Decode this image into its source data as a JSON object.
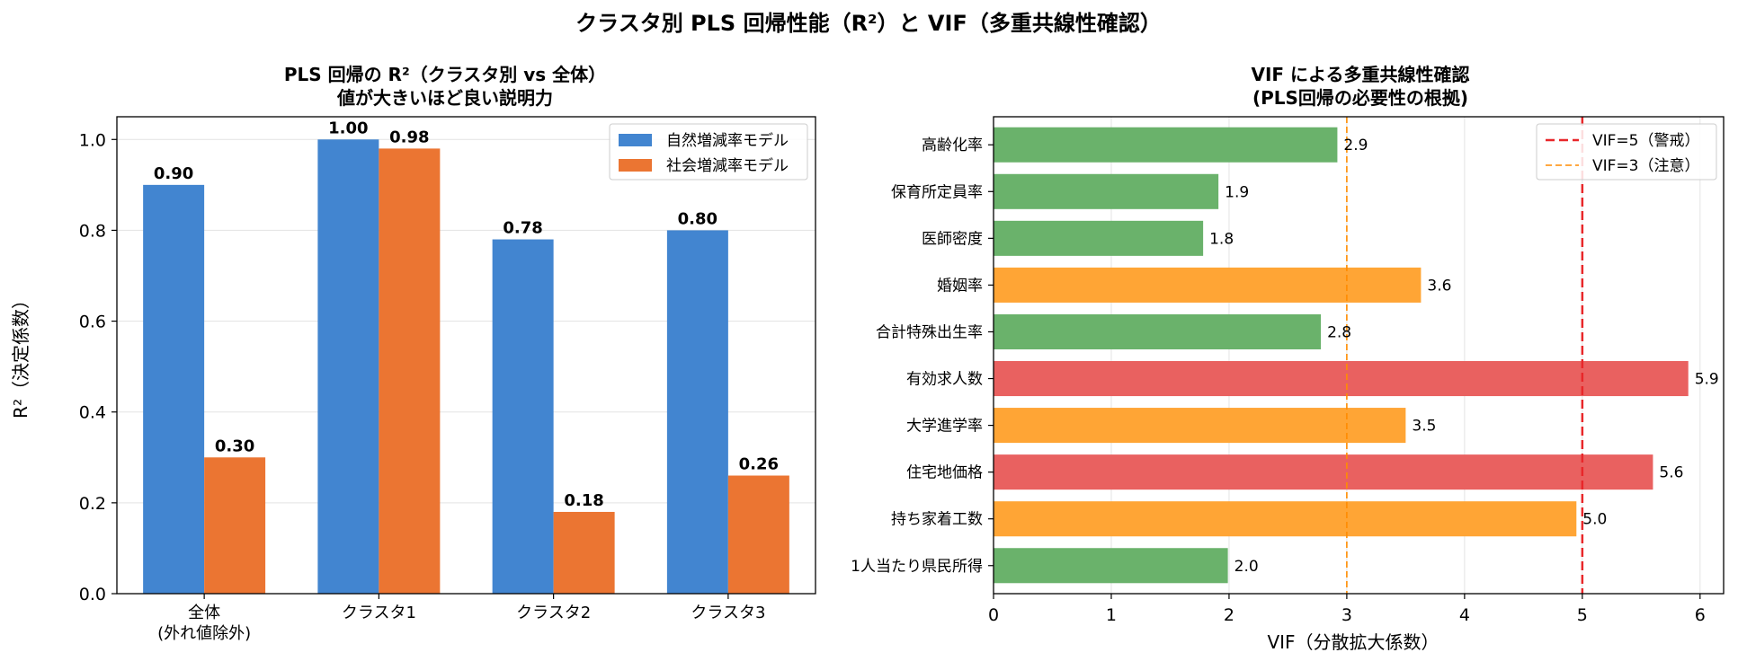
{
  "figure": {
    "suptitle": "クラスタ別 PLS 回帰性能（R²）と VIF（多重共線性確認）"
  },
  "chart_data": [
    {
      "type": "bar",
      "title": "PLS 回帰の R²（クラスタ別 vs 全体）",
      "subtitle": "値が大きいほど良い説明力",
      "categories": [
        [
          "全体",
          "(外れ値除外)"
        ],
        [
          "クラスタ1"
        ],
        [
          "クラスタ2"
        ],
        [
          "クラスタ3"
        ]
      ],
      "series": [
        {
          "name": "自然増減率モデル",
          "color": "#4285D0",
          "values": [
            0.9,
            1.0,
            0.78,
            0.8
          ]
        },
        {
          "name": "社会増減率モデル",
          "color": "#EB7532",
          "values": [
            0.3,
            0.98,
            0.18,
            0.26
          ]
        }
      ],
      "value_labels": [
        [
          "0.90",
          "1.00",
          "0.78",
          "0.80"
        ],
        [
          "0.30",
          "0.98",
          "0.18",
          "0.26"
        ]
      ],
      "ylabel": "R²（決定係数）",
      "xlabel": "",
      "ylim": [
        0,
        1.05
      ],
      "yticks": [
        0.0,
        0.2,
        0.4,
        0.6,
        0.8,
        1.0
      ],
      "ytick_labels": [
        "0.0",
        "0.2",
        "0.4",
        "0.6",
        "0.8",
        "1.0"
      ],
      "grid": "horizontal",
      "legend": "top-right"
    },
    {
      "type": "bar",
      "orientation": "horizontal",
      "title": "VIF による多重共線性確認",
      "subtitle": "(PLS回帰の必要性の根拠)",
      "categories": [
        "高齢化率",
        "保育所定員率",
        "医師密度",
        "婚姻率",
        "合計特殊出生率",
        "有効求人数",
        "大学進学率",
        "住宅地価格",
        "持ち家着工数",
        "1人当たり県民所得"
      ],
      "values": [
        2.92,
        1.91,
        1.78,
        3.63,
        2.78,
        5.9,
        3.5,
        5.6,
        4.95,
        1.99
      ],
      "value_labels": [
        "2.9",
        "1.9",
        "1.8",
        "3.6",
        "2.8",
        "5.9",
        "3.5",
        "5.6",
        "5.0",
        "2.0"
      ],
      "bar_colors": [
        "#6AB26B",
        "#6AB26B",
        "#6AB26B",
        "#FFA535",
        "#6AB26B",
        "#E96160",
        "#FFA535",
        "#E96160",
        "#FFA535",
        "#6AB26B"
      ],
      "reference_lines": [
        {
          "value": 5,
          "label": "VIF=5（警戒）",
          "color": "#E8272A",
          "style": "dashed",
          "width": 2.5
        },
        {
          "value": 3,
          "label": "VIF=3（注意）",
          "color": "#FF8C00",
          "style": "dashed",
          "width": 1.6
        }
      ],
      "xlabel": "VIF（分散拡大係数）",
      "ylabel": "",
      "xlim": [
        0,
        6.2
      ],
      "xticks": [
        0,
        1,
        2,
        3,
        4,
        5,
        6
      ],
      "xtick_labels": [
        "0",
        "1",
        "2",
        "3",
        "4",
        "5",
        "6"
      ],
      "grid": "vertical",
      "legend": "top-right"
    }
  ]
}
